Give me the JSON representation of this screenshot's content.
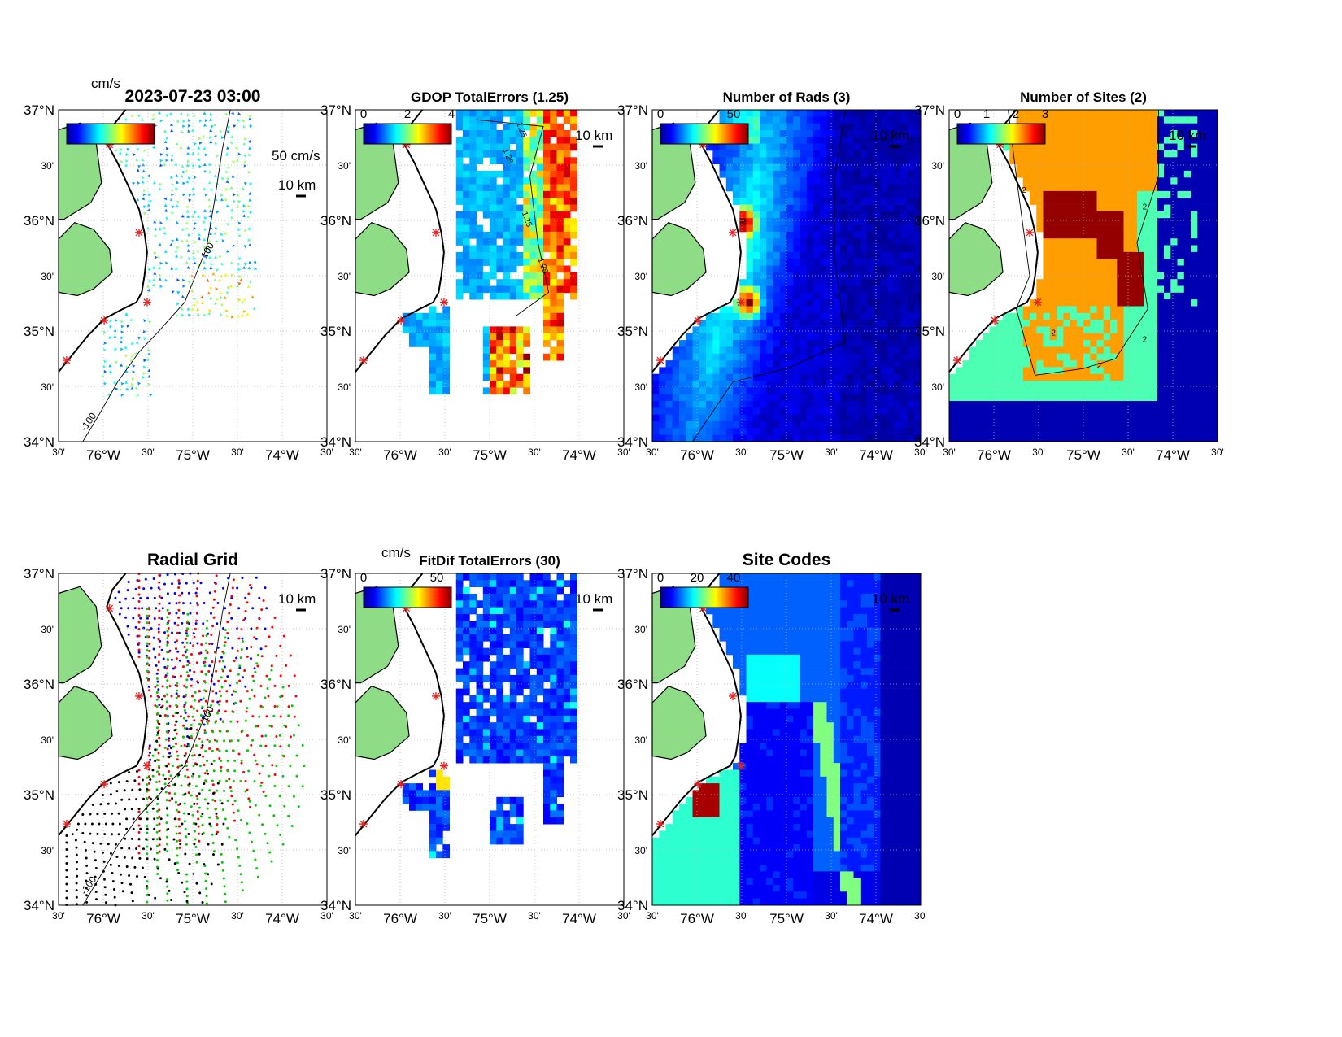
{
  "figure": {
    "axis_ticks": {
      "lat_major": [
        "37°N",
        "36°N",
        "35°N",
        "34°N"
      ],
      "lat_minor": "30'",
      "lon_major": [
        "76°W",
        "75°W",
        "74°W"
      ],
      "lon_minor": "30'"
    },
    "scale_bar_label": "10 km"
  },
  "chart_data": [
    {
      "panel": "vectors",
      "type": "vector_map",
      "title": "2023-07-23 03:00",
      "colorbar_unit": "cm/s",
      "reference_vector_label": "50 cm/s",
      "contour_labels": [
        "100",
        "-100"
      ],
      "xlim": [
        -76.5,
        -73.5
      ],
      "ylim": [
        34.0,
        37.0
      ],
      "colormap": "jet"
    },
    {
      "panel": "gdop",
      "type": "heatmap",
      "title": "GDOP TotalErrors (1.25)",
      "colorbar_ticks": [
        "0",
        "2",
        "4"
      ],
      "clim": [
        0,
        4
      ],
      "contour_level": "1.25",
      "xlim": [
        -76.5,
        -73.5
      ],
      "ylim": [
        34.0,
        37.0
      ]
    },
    {
      "panel": "nrads",
      "type": "heatmap",
      "title": "Number of Rads (3)",
      "colorbar_ticks": [
        "0",
        "50"
      ],
      "clim": [
        0,
        60
      ],
      "contour_level": "3",
      "xlim": [
        -76.5,
        -73.5
      ],
      "ylim": [
        34.0,
        37.0
      ]
    },
    {
      "panel": "nsites",
      "type": "heatmap",
      "title": "Number of Sites (2)",
      "colorbar_ticks": [
        "0",
        "1",
        "2",
        "3"
      ],
      "clim": [
        0,
        3
      ],
      "contour_level": "2",
      "xlim": [
        -76.5,
        -73.5
      ],
      "ylim": [
        34.0,
        37.0
      ]
    },
    {
      "panel": "radial",
      "type": "scatter",
      "title": "Radial Grid",
      "series_colors": [
        "#0000ff",
        "#ff0000",
        "#00cc00",
        "#000000"
      ],
      "contour_labels": [
        "100",
        "-100"
      ],
      "xlim": [
        -76.5,
        -73.5
      ],
      "ylim": [
        34.0,
        37.0
      ]
    },
    {
      "panel": "fitdif",
      "type": "heatmap",
      "title": "FitDif TotalErrors (30)",
      "colorbar_unit": "cm/s",
      "colorbar_ticks": [
        "0",
        "50"
      ],
      "clim": [
        0,
        60
      ],
      "xlim": [
        -76.5,
        -73.5
      ],
      "ylim": [
        34.0,
        37.0
      ]
    },
    {
      "panel": "sitecodes",
      "type": "heatmap",
      "title": "Site Codes",
      "colorbar_ticks": [
        "0",
        "20",
        "40"
      ],
      "clim": [
        0,
        48
      ],
      "xlim": [
        -76.5,
        -73.5
      ],
      "ylim": [
        34.0,
        37.0
      ]
    }
  ]
}
